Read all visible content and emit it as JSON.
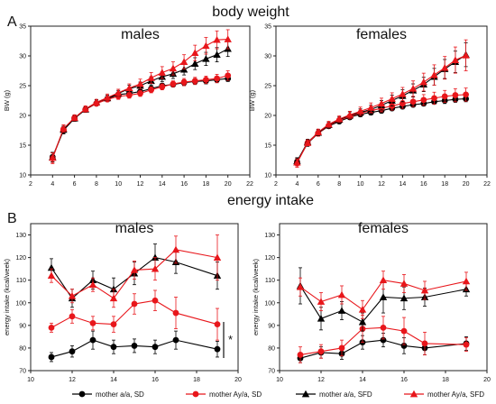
{
  "figure": {
    "panel_a_letter": "A",
    "panel_a_title": "body weight",
    "panel_b_letter": "B",
    "panel_b_title": "energy intake",
    "significance_mark": "*"
  },
  "legend": [
    {
      "label": "mother a/a, SD",
      "color": "#000000",
      "marker": "circle"
    },
    {
      "label": "mother Ay/a, SD",
      "color": "#e8161b",
      "marker": "circle"
    },
    {
      "label": "mother a/a, SFD",
      "color": "#000000",
      "marker": "triangle"
    },
    {
      "label": "mother Ay/a, SFD",
      "color": "#e8161b",
      "marker": "triangle"
    }
  ],
  "chart_data": [
    {
      "type": "line",
      "title": "males",
      "xlabel": "",
      "ylabel": "BW (g)",
      "xlim": [
        2,
        22
      ],
      "ylim": [
        10,
        35
      ],
      "xticks": [
        2,
        4,
        6,
        8,
        10,
        12,
        14,
        16,
        18,
        20,
        22
      ],
      "yticks": [
        10,
        15,
        20,
        25,
        30,
        35
      ],
      "x": [
        4,
        5,
        6,
        7,
        8,
        9,
        10,
        11,
        12,
        13,
        14,
        15,
        16,
        17,
        18,
        19,
        20
      ],
      "series": [
        {
          "name": "mother a/a, SD",
          "marker": "circle",
          "color": "#000000",
          "values": [
            13,
            17.5,
            19.5,
            21,
            22,
            22.8,
            23.5,
            23.7,
            24,
            24.5,
            25,
            25.2,
            25.5,
            25.7,
            25.8,
            26,
            26.2
          ],
          "errors": [
            0.8,
            0.6,
            0.5,
            0.4,
            0.4,
            0.4,
            0.4,
            0.4,
            0.4,
            0.4,
            0.4,
            0.4,
            0.5,
            0.5,
            0.5,
            0.5,
            0.5
          ]
        },
        {
          "name": "mother Ay/a, SD",
          "marker": "circle",
          "color": "#e8161b",
          "values": [
            12.8,
            17.7,
            19.6,
            21,
            22,
            22.7,
            23.2,
            23.4,
            23.7,
            24.3,
            24.8,
            25.3,
            25.6,
            25.8,
            26,
            26.2,
            26.7
          ],
          "errors": [
            0.9,
            0.7,
            0.5,
            0.5,
            0.4,
            0.4,
            0.5,
            0.5,
            0.5,
            0.5,
            0.5,
            0.5,
            0.6,
            0.6,
            0.6,
            0.7,
            0.8
          ]
        },
        {
          "name": "mother a/a, SFD",
          "marker": "triangle",
          "color": "#000000",
          "values": [
            13,
            17.6,
            19.5,
            21,
            22.2,
            22.9,
            23.7,
            24.5,
            25,
            25.8,
            26.5,
            27,
            27.7,
            28.7,
            29.5,
            30.2,
            31.2
          ],
          "errors": [
            0.8,
            0.6,
            0.5,
            0.4,
            0.4,
            0.5,
            0.5,
            0.6,
            0.6,
            0.7,
            0.8,
            0.8,
            0.9,
            1.0,
            1.1,
            1.2,
            1.3
          ]
        },
        {
          "name": "mother Ay/a, SFD",
          "marker": "triangle",
          "color": "#e8161b",
          "values": [
            12.9,
            17.8,
            19.6,
            21.1,
            22.2,
            23,
            23.8,
            24.6,
            25.3,
            26.3,
            27.2,
            27.9,
            29,
            30.5,
            31.7,
            32.7,
            32.8
          ],
          "errors": [
            0.8,
            0.6,
            0.5,
            0.5,
            0.5,
            0.6,
            0.6,
            0.7,
            0.8,
            0.9,
            1.0,
            1.1,
            1.2,
            1.3,
            1.4,
            1.5,
            1.6
          ]
        }
      ]
    },
    {
      "type": "line",
      "title": "females",
      "xlabel": "",
      "ylabel": "BW (g)",
      "xlim": [
        2,
        22
      ],
      "ylim": [
        10,
        35
      ],
      "xticks": [
        2,
        4,
        6,
        8,
        10,
        12,
        14,
        16,
        18,
        20,
        22
      ],
      "yticks": [
        10,
        15,
        20,
        25,
        30,
        35
      ],
      "x": [
        4,
        5,
        6,
        7,
        8,
        9,
        10,
        11,
        12,
        13,
        14,
        15,
        16,
        17,
        18,
        19,
        20
      ],
      "series": [
        {
          "name": "mother a/a, SD",
          "marker": "circle",
          "color": "#000000",
          "values": [
            12.2,
            15.3,
            17,
            18.2,
            19,
            19.7,
            20.2,
            20.5,
            20.8,
            21.2,
            21.5,
            21.8,
            22,
            22.3,
            22.5,
            22.7,
            22.8
          ],
          "errors": [
            0.6,
            0.5,
            0.4,
            0.4,
            0.4,
            0.4,
            0.4,
            0.4,
            0.4,
            0.4,
            0.4,
            0.4,
            0.4,
            0.4,
            0.5,
            0.5,
            0.5
          ]
        },
        {
          "name": "mother Ay/a, SD",
          "marker": "circle",
          "color": "#e8161b",
          "values": [
            12,
            15.4,
            17,
            18.3,
            19.2,
            19.8,
            20.4,
            20.8,
            21.2,
            21.6,
            22,
            22.3,
            22.6,
            22.9,
            23.2,
            23.4,
            23.5
          ],
          "errors": [
            0.7,
            0.5,
            0.5,
            0.4,
            0.4,
            0.4,
            0.5,
            0.5,
            0.6,
            0.7,
            0.8,
            0.8,
            0.9,
            1.0,
            1.0,
            1.1,
            1.1
          ]
        },
        {
          "name": "mother a/a, SFD",
          "marker": "triangle",
          "color": "#000000",
          "values": [
            12.3,
            15.5,
            17.1,
            18.4,
            19.3,
            20,
            20.5,
            21,
            21.7,
            22.5,
            23.3,
            24.2,
            25.2,
            26.5,
            27.8,
            29,
            30.2
          ],
          "errors": [
            0.6,
            0.5,
            0.5,
            0.5,
            0.5,
            0.6,
            0.6,
            0.7,
            0.8,
            0.9,
            1.0,
            1.1,
            1.2,
            1.4,
            1.6,
            1.8,
            2.0
          ]
        },
        {
          "name": "mother Ay/a, SFD",
          "marker": "triangle",
          "color": "#e8161b",
          "values": [
            12.1,
            15.4,
            17.2,
            18.5,
            19.4,
            20.1,
            20.7,
            21.3,
            22,
            22.8,
            23.6,
            24.5,
            25.6,
            26.8,
            28,
            29.3,
            30.1
          ],
          "errors": [
            0.6,
            0.5,
            0.5,
            0.5,
            0.5,
            0.6,
            0.7,
            0.8,
            0.9,
            1.0,
            1.1,
            1.3,
            1.5,
            1.7,
            1.9,
            2.2,
            2.6
          ]
        }
      ]
    },
    {
      "type": "line",
      "title": "males",
      "xlabel": "",
      "ylabel": "energy intake (kcal/week)",
      "xlim": [
        10,
        20
      ],
      "ylim": [
        70,
        135
      ],
      "xticks": [
        10,
        12,
        14,
        16,
        18,
        20
      ],
      "yticks": [
        70,
        80,
        90,
        100,
        110,
        120,
        130
      ],
      "x": [
        11,
        12,
        13,
        14,
        15,
        16,
        17,
        19
      ],
      "series": [
        {
          "name": "mother a/a, SD",
          "marker": "circle",
          "color": "#000000",
          "values": [
            76,
            78.5,
            83.5,
            80.5,
            81,
            80.5,
            83.5,
            79.5
          ],
          "errors": [
            2,
            2.5,
            4,
            3,
            3,
            3,
            4,
            3.5
          ]
        },
        {
          "name": "mother Ay/a, SD",
          "marker": "circle",
          "color": "#e8161b",
          "values": [
            89,
            94,
            91,
            90.5,
            99.5,
            101,
            95.5,
            90.5
          ],
          "errors": [
            2,
            3,
            3,
            3.5,
            4.5,
            4.5,
            7,
            7
          ]
        },
        {
          "name": "mother a/a, SFD",
          "marker": "triangle",
          "color": "#000000",
          "values": [
            115.5,
            102,
            110,
            106,
            113,
            120,
            118,
            112
          ],
          "errors": [
            4,
            4,
            4,
            5,
            5,
            6,
            5,
            6
          ]
        },
        {
          "name": "mother Ay/a, SFD",
          "marker": "triangle",
          "color": "#e8161b",
          "values": [
            112,
            103,
            108,
            102,
            114.5,
            115,
            123.5,
            120
          ],
          "errors": [
            3,
            3,
            3,
            4,
            4,
            5,
            6,
            10
          ]
        }
      ]
    },
    {
      "type": "line",
      "title": "females",
      "xlabel": "",
      "ylabel": "energy intake (kcal/week)",
      "xlim": [
        10,
        20
      ],
      "ylim": [
        70,
        135
      ],
      "xticks": [
        10,
        12,
        14,
        16,
        18,
        20
      ],
      "yticks": [
        70,
        80,
        90,
        100,
        110,
        120,
        130
      ],
      "x": [
        11,
        12,
        13,
        14,
        15,
        16,
        17,
        19
      ],
      "series": [
        {
          "name": "mother a/a, SD",
          "marker": "circle",
          "color": "#000000",
          "values": [
            75.5,
            78,
            77.5,
            82.5,
            83.5,
            81,
            80,
            82
          ],
          "errors": [
            2,
            2.5,
            2.5,
            3,
            3,
            3.5,
            3,
            3
          ]
        },
        {
          "name": "mother Ay/a, SD",
          "marker": "circle",
          "color": "#e8161b",
          "values": [
            77,
            78.5,
            80,
            88.5,
            89,
            87.5,
            82,
            81.5
          ],
          "errors": [
            3.5,
            3,
            3.5,
            6,
            5,
            6,
            5,
            3
          ]
        },
        {
          "name": "mother a/a, SFD",
          "marker": "triangle",
          "color": "#000000",
          "values": [
            107.5,
            93,
            96.5,
            91.5,
            102.5,
            102,
            102.5,
            106
          ],
          "errors": [
            8,
            5,
            4,
            4,
            7,
            5,
            4,
            3
          ]
        },
        {
          "name": "mother Ay/a, SFD",
          "marker": "triangle",
          "color": "#e8161b",
          "values": [
            107,
            100.5,
            103.5,
            97,
            110,
            108.5,
            105.5,
            109.5
          ],
          "errors": [
            4,
            4,
            4,
            4,
            4,
            4,
            4,
            4
          ]
        }
      ]
    }
  ]
}
